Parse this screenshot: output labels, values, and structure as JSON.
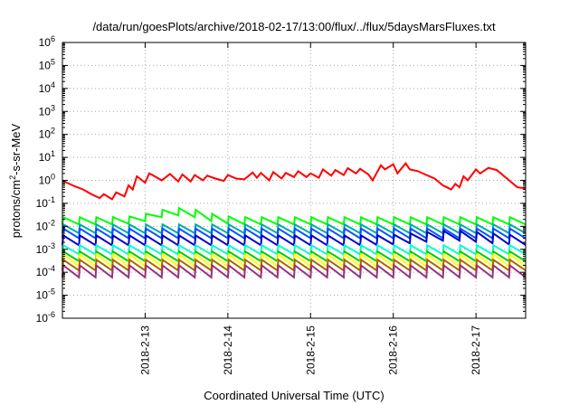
{
  "chart_data": {
    "type": "line",
    "title": "/data/run/goesPlots/archive/2018-02-17/13:00/flux/../flux/5daysMarsFluxes.txt",
    "xlabel": "Coordinated Universal Time (UTC)",
    "ylabel": {
      "prefix": "protons/cm",
      "sup": "2",
      "suffix": "-s-sr-MeV"
    },
    "scale": {
      "y": "log"
    },
    "xlim": [
      0,
      5.6
    ],
    "ylim_log10": [
      -6,
      6
    ],
    "x_ticks": [
      {
        "x": 1,
        "label": "2018-2-13"
      },
      {
        "x": 2,
        "label": "2018-2-14"
      },
      {
        "x": 3,
        "label": "2018-2-15"
      },
      {
        "x": 4,
        "label": "2018-2-16"
      },
      {
        "x": 5,
        "label": "2018-2-17"
      }
    ],
    "y_ticks": [
      {
        "exp": -6,
        "base": "10",
        "sup": "-6"
      },
      {
        "exp": -5,
        "base": "10",
        "sup": "-5"
      },
      {
        "exp": -4,
        "base": "10",
        "sup": "-4"
      },
      {
        "exp": -3,
        "base": "10",
        "sup": "-3"
      },
      {
        "exp": -2,
        "base": "10",
        "sup": "-2"
      },
      {
        "exp": -1,
        "base": "10",
        "sup": "-1"
      },
      {
        "exp": 0,
        "base": "10",
        "sup": "0"
      },
      {
        "exp": 1,
        "base": "10",
        "sup": "1"
      },
      {
        "exp": 2,
        "base": "10",
        "sup": "2"
      },
      {
        "exp": 3,
        "base": "10",
        "sup": "3"
      },
      {
        "exp": 4,
        "base": "10",
        "sup": "4"
      },
      {
        "exp": 5,
        "base": "10",
        "sup": "5"
      },
      {
        "exp": 6,
        "base": "10",
        "sup": "6"
      }
    ],
    "grid": true,
    "legend": "none",
    "series": [
      {
        "color": "#ff0000",
        "x": [
          0,
          0.05,
          0.15,
          0.25,
          0.35,
          0.45,
          0.5,
          0.6,
          0.65,
          0.75,
          0.8,
          0.85,
          0.9,
          1.0,
          1.05,
          1.1,
          1.2,
          1.3,
          1.4,
          1.45,
          1.55,
          1.6,
          1.7,
          1.75,
          1.85,
          1.95,
          2.0,
          2.1,
          2.2,
          2.3,
          2.35,
          2.4,
          2.5,
          2.55,
          2.65,
          2.7,
          2.8,
          2.85,
          2.95,
          3.0,
          3.1,
          3.15,
          3.25,
          3.3,
          3.4,
          3.45,
          3.55,
          3.6,
          3.7,
          3.75,
          3.85,
          3.9,
          4.0,
          4.05,
          4.15,
          4.2,
          4.3,
          4.4,
          4.5,
          4.6,
          4.65,
          4.7,
          4.75,
          4.8,
          4.85,
          4.9,
          5.0,
          5.05,
          5.15,
          5.25,
          5.3,
          5.4,
          5.5,
          5.6
        ],
        "y": [
          1.0,
          0.8,
          0.55,
          0.4,
          0.25,
          0.17,
          0.25,
          0.15,
          0.3,
          0.2,
          0.6,
          0.4,
          1.5,
          0.8,
          2.0,
          1.6,
          1.0,
          1.9,
          0.9,
          1.8,
          0.9,
          1.7,
          1.0,
          1.6,
          1.2,
          0.95,
          1.7,
          1.2,
          1.1,
          2.2,
          1.3,
          2.1,
          1.0,
          2.3,
          1.2,
          2.1,
          1.4,
          2.5,
          1.4,
          2.0,
          1.3,
          3.0,
          1.6,
          2.8,
          1.7,
          3.4,
          2.0,
          3.2,
          1.8,
          1.0,
          4.5,
          3.0,
          5.0,
          2.0,
          5.5,
          3.0,
          2.5,
          1.7,
          1.2,
          0.6,
          0.5,
          0.4,
          0.7,
          0.5,
          1.5,
          1.0,
          3.0,
          2.0,
          3.5,
          2.8,
          2.0,
          1.0,
          0.5,
          0.45
        ]
      },
      {
        "color": "#00ff00",
        "sawtooth": {
          "peak": 0.025,
          "trough": 0.012,
          "cycles": 28,
          "bump_center": 1.5,
          "bump_factor": 2.5,
          "bump_width": 0.35
        }
      },
      {
        "color": "#00aaaa",
        "sawtooth": {
          "peak": 0.012,
          "trough": 0.005,
          "cycles": 28
        }
      },
      {
        "color": "#0055ff",
        "sawtooth": {
          "peak": 0.008,
          "trough": 0.003,
          "cycles": 28
        }
      },
      {
        "color": "#0000cc",
        "sawtooth": {
          "peak": 0.004,
          "trough": 0.0015,
          "cycles": 28,
          "bump_center": 4.8,
          "bump_factor": 1.6,
          "bump_width": 0.5
        }
      },
      {
        "color": "#00ffcc",
        "sawtooth": {
          "peak": 0.0015,
          "trough": 0.0006,
          "cycles": 28
        }
      },
      {
        "color": "#00cc00",
        "sawtooth": {
          "peak": 0.0008,
          "trough": 0.0003,
          "cycles": 28
        }
      },
      {
        "color": "#ffff00",
        "sawtooth": {
          "peak": 0.0006,
          "trough": 0.00018,
          "cycles": 28
        }
      },
      {
        "color": "#aa6600",
        "sawtooth": {
          "peak": 0.00035,
          "trough": 0.00012,
          "cycles": 28
        }
      },
      {
        "color": "#993377",
        "sawtooth": {
          "peak": 0.0002,
          "trough": 6e-05,
          "cycles": 28
        }
      }
    ]
  }
}
